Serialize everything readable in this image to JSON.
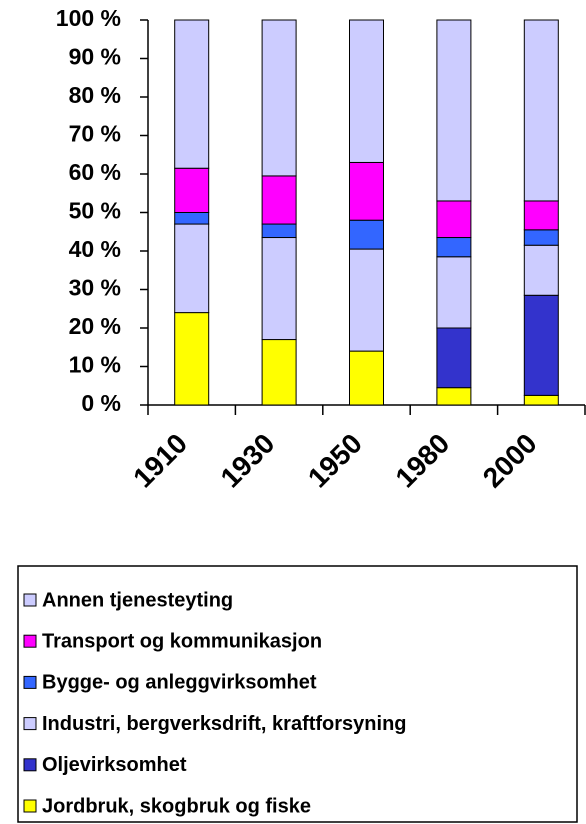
{
  "chart_data": {
    "type": "stacked_bar",
    "categories": [
      "1910",
      "1930",
      "1950",
      "1980",
      "2000"
    ],
    "series": [
      {
        "name": "Jordbruk, skogbruk og fiske",
        "color": "#ffff00",
        "values": [
          24,
          17,
          14,
          4.5,
          2.5
        ]
      },
      {
        "name": "Oljevirksomhet",
        "color": "#3333cc",
        "values": [
          0,
          0,
          0,
          15.5,
          26
        ]
      },
      {
        "name": "Industri, bergverksdrift, kraftforsyning",
        "color": "#ccccff",
        "values": [
          23,
          26.5,
          26.5,
          18.5,
          13
        ]
      },
      {
        "name": "Bygge- og anleggvirksomhet",
        "color": "#3366ff",
        "values": [
          3,
          3.5,
          7.5,
          5,
          4
        ]
      },
      {
        "name": "Transport og kommunikasjon",
        "color": "#ff00ff",
        "values": [
          11.5,
          12.5,
          15,
          9.5,
          7.5
        ]
      },
      {
        "name": "Annen tjenesteyting",
        "color": "#ccccff",
        "values": [
          38.5,
          40.5,
          37,
          47,
          47
        ]
      }
    ],
    "ylim": [
      0,
      100
    ],
    "yticks": [
      {
        "value": 0,
        "label": "0 %"
      },
      {
        "value": 10,
        "label": "10 %"
      },
      {
        "value": 20,
        "label": "20 %"
      },
      {
        "value": 30,
        "label": "30 %"
      },
      {
        "value": 40,
        "label": "40 %"
      },
      {
        "value": 50,
        "label": "50 %"
      },
      {
        "value": 60,
        "label": "60 %"
      },
      {
        "value": 70,
        "label": "70 %"
      },
      {
        "value": 80,
        "label": "80 %"
      },
      {
        "value": 90,
        "label": "90 %"
      },
      {
        "value": 100,
        "label": "100 %"
      }
    ],
    "grid": false
  }
}
